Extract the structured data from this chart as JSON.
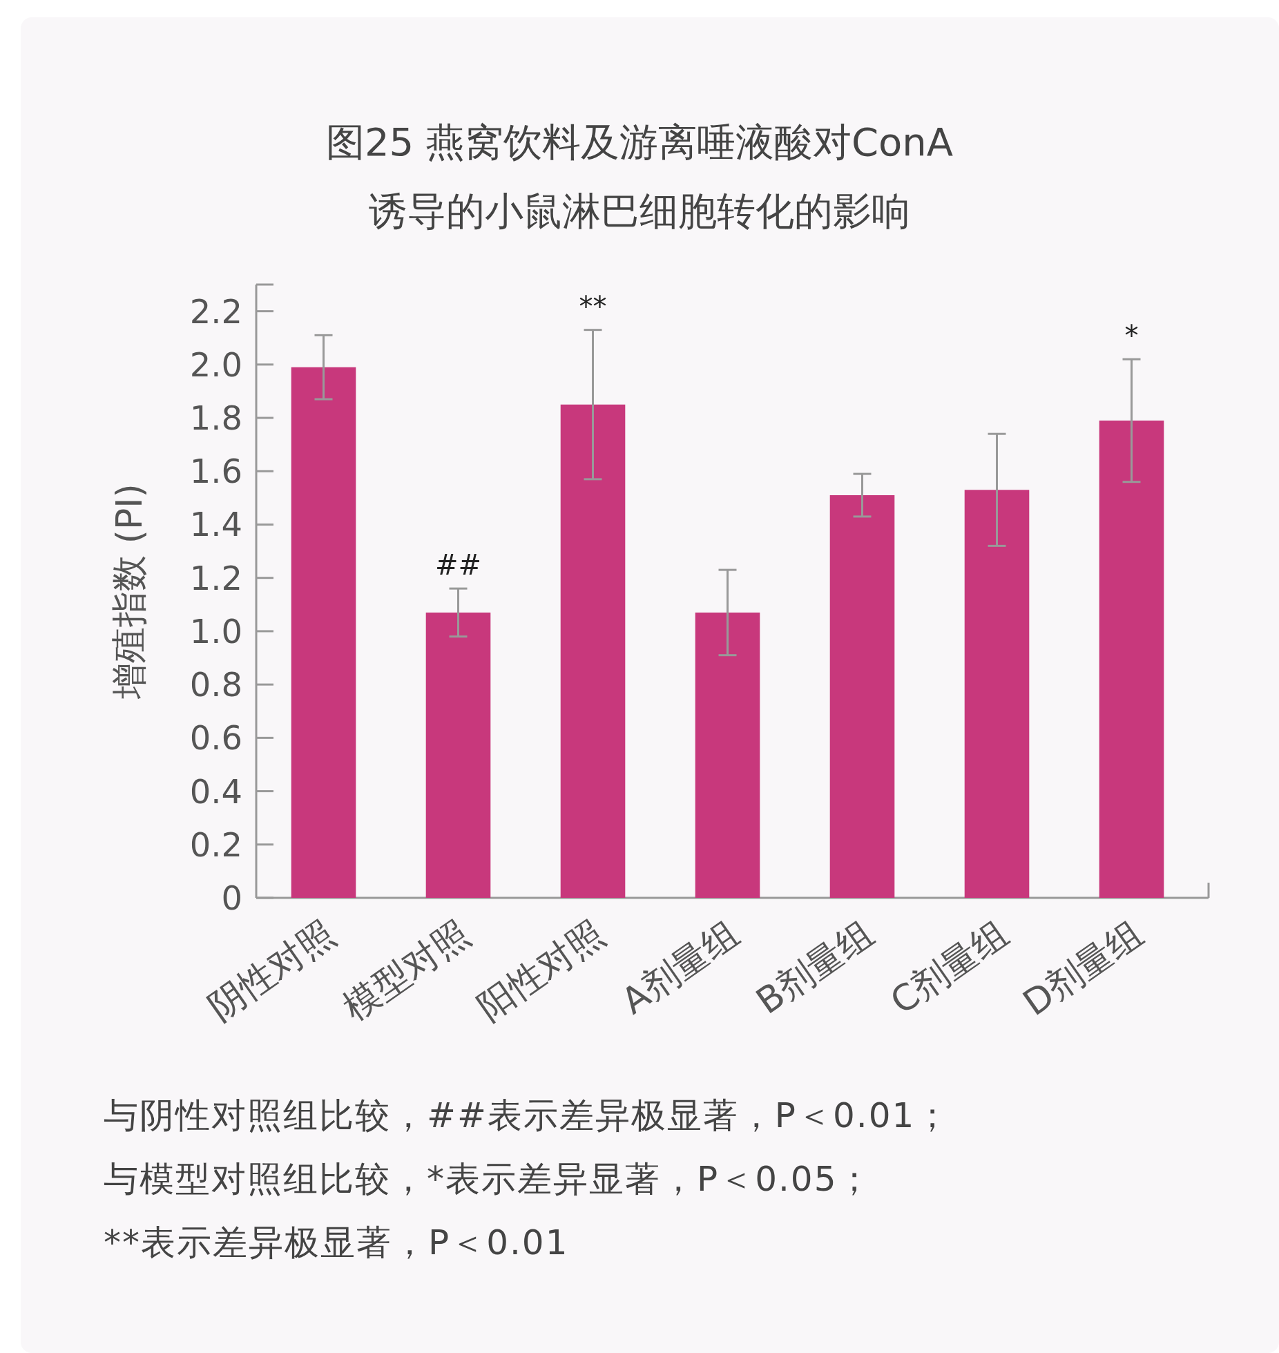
{
  "chart_data": {
    "type": "bar",
    "title": "图25 燕窝饮料及游离唾液酸对ConA诱导的小鼠淋巴细胞转化的影响",
    "ylabel": "增殖指数 (PI)",
    "categories": [
      "阴性对照",
      "模型对照",
      "阳性对照",
      "A剂量组",
      "B剂量组",
      "C剂量组",
      "D剂量组"
    ],
    "values": [
      1.99,
      1.07,
      1.85,
      1.07,
      1.51,
      1.53,
      1.79
    ],
    "errors": [
      0.12,
      0.09,
      0.28,
      0.16,
      0.08,
      0.21,
      0.23
    ],
    "color": "#c8387c",
    "ylim": [
      0,
      2.3
    ],
    "yticks": [
      {
        "value": 0,
        "label": "0"
      },
      0.2,
      0.4,
      0.6,
      0.8,
      {
        "value": 1,
        "label": "1.0"
      },
      1.2,
      1.4,
      1.6,
      1.8,
      {
        "value": 2,
        "label": "2.0"
      },
      2.2
    ],
    "annotations": [
      {
        "text": "##",
        "x": "模型对照",
        "y": 1.16
      },
      {
        "text": "**",
        "x": "阳性对照",
        "y": 2.13
      },
      {
        "text": "*",
        "x": "D剂量组",
        "y": 2.02
      },
      "与阴性对照组比较，##表示差异极显著，P＜0.01；",
      "与模型对照组比较，*表示差异显著，P＜0.05；",
      "**表示差异极显著，P＜0.01"
    ]
  }
}
